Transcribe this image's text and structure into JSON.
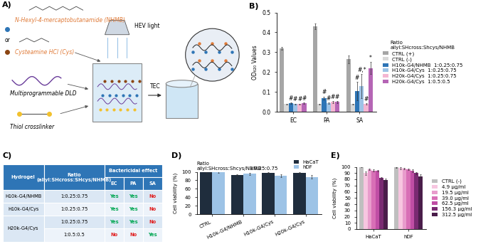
{
  "diagram": {
    "label": "A)",
    "nodes": [
      {
        "label": "N-Hexyl-4-mercaptobutanamide (NHMB)"
      },
      {
        "label": "or"
      },
      {
        "label": "Cysteamine HCl (Cys)"
      },
      {
        "label": "HEV light"
      },
      {
        "label": "Multiprogrammable DLD"
      },
      {
        "label": "Thiol crosslinker"
      },
      {
        "label": "TEC"
      }
    ]
  },
  "chart_data": [
    {
      "type": "bar",
      "panel": "B)",
      "ylabel": "OD₆₂₀ Values",
      "categories": [
        "EC",
        "PA",
        "SA"
      ],
      "ylim": [
        0,
        0.5
      ],
      "yticks": [
        0.0,
        0.1,
        0.2,
        0.3,
        0.4,
        0.5
      ],
      "legend": "right",
      "legend_title": "Ratio\nallyl:SHcross:Shcys/NHMB",
      "series": [
        {
          "name": "CTRL (+)",
          "color": "#a6a6a6",
          "values": [
            0.32,
            0.43,
            0.265
          ],
          "errors": [
            0.008,
            0.015,
            0.02
          ]
        },
        {
          "name": "CTRL (-)",
          "color": "#d9d9d9",
          "values": [
            0.04,
            0.04,
            0.04
          ],
          "errors": [
            0.002,
            0.002,
            0.002
          ]
        },
        {
          "name": "H10k-G4/NHMB",
          "ratio": "1:0.25:0.75",
          "color": "#2e75b6",
          "values": [
            0.045,
            0.07,
            0.105
          ],
          "errors": [
            0.003,
            0.008,
            0.045
          ],
          "marks": [
            "#",
            "#",
            "#"
          ]
        },
        {
          "name": "H10k-G4/Cys",
          "ratio": "1:0.25:0.75",
          "color": "#9dc3e6",
          "values": [
            0.04,
            0.045,
            0.13
          ],
          "errors": [
            0.002,
            0.003,
            0.06
          ],
          "marks": [
            "#",
            "#",
            "#,*"
          ]
        },
        {
          "name": "H20k-G4/Cys",
          "ratio": "1:0.25:0.75",
          "color": "#f4b6d2",
          "values": [
            0.04,
            0.05,
            0.04
          ],
          "errors": [
            0.002,
            0.004,
            0.004
          ],
          "marks": [
            "#",
            "#",
            "#"
          ]
        },
        {
          "name": "H20k-G4/Cys",
          "ratio": "1:0.5:0.5",
          "color": "#b565b5",
          "values": [
            0.045,
            0.05,
            0.22
          ],
          "errors": [
            0.003,
            0.004,
            0.03
          ],
          "marks": [
            "#",
            "#",
            "*"
          ]
        }
      ]
    },
    {
      "type": "bar",
      "panel": "D)",
      "ylabel": "Cell viability (%)",
      "ratio_title": "Ratio\nallyl:SHcross:Shcys/NHMB",
      "ratio": "1:0.25:0.75",
      "categories": [
        "CTRL",
        "H10k-G4/NHMB",
        "H10k-G4/Cys",
        "H20k-G4/Cys"
      ],
      "ylim": [
        0,
        100
      ],
      "yticks": [
        0,
        20,
        40,
        60,
        80,
        100
      ],
      "legend": "top",
      "series": [
        {
          "name": "HaCaT",
          "color": "#1f2d3d",
          "values": [
            100,
            93,
            97,
            98
          ],
          "errors": [
            2,
            1.5,
            1.5,
            1.5
          ]
        },
        {
          "name": "hDF",
          "color": "#9dc3e6",
          "values": [
            100,
            95,
            91,
            88
          ],
          "errors": [
            2,
            2,
            3,
            4
          ]
        }
      ]
    },
    {
      "type": "bar",
      "panel": "E)",
      "ylabel": "Cell viability (%)",
      "categories": [
        "HaCaT",
        "hDF"
      ],
      "ylim": [
        0,
        100
      ],
      "yticks": [
        0,
        10,
        20,
        30,
        40,
        50,
        60,
        70,
        80,
        90,
        100
      ],
      "legend": "right",
      "series": [
        {
          "name": "CTRL (-)",
          "color": "#bfbfbf",
          "values": [
            100,
            99
          ],
          "errors": [
            1,
            1
          ]
        },
        {
          "name": "4.9 µg/ml",
          "color": "#f7c6e0",
          "values": [
            90,
            98
          ],
          "errors": [
            3,
            1.5
          ]
        },
        {
          "name": "19.5 µg/ml",
          "color": "#e89ccc",
          "values": [
            96,
            97
          ],
          "errors": [
            1,
            1.5
          ]
        },
        {
          "name": "39.0 µg/ml",
          "color": "#d86fb6",
          "values": [
            94,
            96
          ],
          "errors": [
            1.5,
            1.5
          ]
        },
        {
          "name": "62.5 µg/ml",
          "color": "#c04ea5",
          "values": [
            94,
            94
          ],
          "errors": [
            1,
            2
          ]
        },
        {
          "name": "156.3 µg/ml",
          "color": "#7a2a72",
          "values": [
            82,
            90
          ],
          "errors": [
            2,
            2
          ]
        },
        {
          "name": "312.5 µg/ml",
          "color": "#4a1d4a",
          "values": [
            79,
            85
          ],
          "errors": [
            2,
            3
          ]
        }
      ]
    }
  ],
  "table": {
    "label": "C)",
    "header": [
      "Hydrogel",
      "Ratio\n(allyl:SHcross:SHcys/NHMB)",
      "Bactericidal effect"
    ],
    "subheader": [
      "EC",
      "PA",
      "SA"
    ],
    "rows": [
      [
        "H10k-G4/NHMB",
        "1:0.25:0.75",
        {
          "text": "Yes",
          "color": "#00a651"
        },
        {
          "text": "Yes",
          "color": "#00a651"
        },
        {
          "text": "No",
          "color": "#e02020"
        }
      ],
      [
        "H10k-G4/Cys",
        "1:0.25:0.75",
        {
          "text": "Yes",
          "color": "#00a651"
        },
        {
          "text": "Yes",
          "color": "#00a651"
        },
        {
          "text": "No",
          "color": "#e02020"
        }
      ],
      [
        "H20k-G4/Cys",
        "1:0.25:0.75",
        {
          "text": "Yes",
          "color": "#00a651"
        },
        {
          "text": "Yes",
          "color": "#00a651"
        },
        {
          "text": "No",
          "color": "#e02020"
        }
      ],
      [
        null,
        "1:0.5:0.5",
        {
          "text": "No",
          "color": "#e02020"
        },
        {
          "text": "No",
          "color": "#e02020"
        },
        {
          "text": "Yes",
          "color": "#00a651"
        }
      ]
    ]
  }
}
